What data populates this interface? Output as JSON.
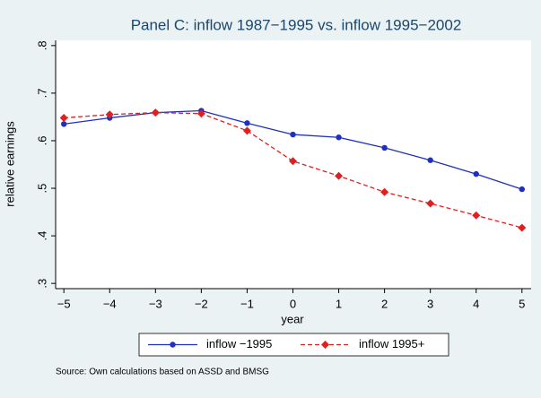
{
  "chart_data": {
    "type": "line",
    "title": "Panel C: inflow 1987−1995 vs. inflow 1995−2002",
    "x_label": "year",
    "y_label": "relative earnings",
    "source": "Source: Own calculations based on ASSD and BMSG",
    "x": [
      -5,
      -4,
      -3,
      -2,
      -1,
      0,
      1,
      2,
      3,
      4,
      5
    ],
    "series": [
      {
        "name": "inflow −1995",
        "color": "#1f30c0",
        "dash": "solid",
        "marker": "circle",
        "values": [
          0.635,
          0.648,
          0.659,
          0.663,
          0.637,
          0.613,
          0.607,
          0.585,
          0.559,
          0.53,
          0.498
        ]
      },
      {
        "name": "inflow 1995+",
        "color": "#e02020",
        "dash": "dashed",
        "marker": "diamond",
        "values": [
          0.648,
          0.655,
          0.659,
          0.657,
          0.621,
          0.557,
          0.526,
          0.492,
          0.468,
          0.443,
          0.417
        ]
      }
    ],
    "xlim": [
      -5.18,
      5.2
    ],
    "xticks": [
      {
        "value": -5,
        "label": "−5"
      },
      {
        "value": -4,
        "label": "−4"
      },
      {
        "value": -3,
        "label": "−3"
      },
      {
        "value": -2,
        "label": "−2"
      },
      {
        "value": -1,
        "label": "−1"
      },
      0,
      1,
      2,
      3,
      4,
      5
    ],
    "ylim": [
      0.289,
      0.811
    ],
    "yticks": [
      {
        "value": 0.3,
        "label": ".3"
      },
      {
        "value": 0.4,
        "label": ".4"
      },
      {
        "value": 0.5,
        "label": ".5"
      },
      {
        "value": 0.6,
        "label": ".6"
      },
      {
        "value": 0.7,
        "label": ".7"
      },
      {
        "value": 0.8,
        "label": ".8"
      }
    ],
    "grid": false,
    "legend": "bottom"
  }
}
